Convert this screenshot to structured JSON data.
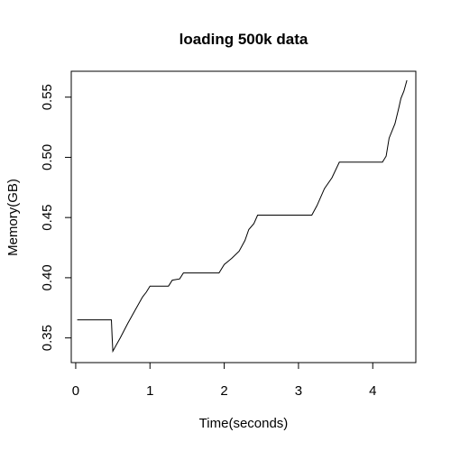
{
  "chart_data": {
    "type": "line",
    "title": "loading 500k data",
    "xlabel": "Time(seconds)",
    "ylabel": "Memory(GB)",
    "xlim": [
      -0.06,
      4.58
    ],
    "ylim": [
      0.3295,
      0.5715
    ],
    "xticks": [
      0,
      1,
      2,
      3,
      4
    ],
    "xtick_labels": [
      "0",
      "1",
      "2",
      "3",
      "4"
    ],
    "yticks": [
      0.35,
      0.4,
      0.45,
      0.5,
      0.55
    ],
    "ytick_labels": [
      "0.35",
      "0.40",
      "0.45",
      "0.50",
      "0.55"
    ],
    "grid": false,
    "line_color": "#000000",
    "series": [
      {
        "x": [
          0.02,
          0.48,
          0.49,
          0.5,
          0.6,
          0.7,
          0.8,
          0.9,
          0.95,
          1.0,
          1.1,
          1.25,
          1.3,
          1.4,
          1.45,
          1.6,
          1.8,
          1.93,
          2.0,
          2.1,
          2.2,
          2.28,
          2.33,
          2.4,
          2.45,
          2.6,
          2.8,
          3.0,
          3.18,
          3.25,
          3.35,
          3.45,
          3.55,
          3.58,
          3.8,
          4.0,
          4.13,
          4.18,
          4.22,
          4.3,
          4.35,
          4.38,
          4.42,
          4.46
        ],
        "y": [
          0.365,
          0.365,
          0.351,
          0.339,
          0.35,
          0.362,
          0.373,
          0.384,
          0.388,
          0.393,
          0.393,
          0.393,
          0.398,
          0.399,
          0.404,
          0.404,
          0.404,
          0.404,
          0.411,
          0.416,
          0.422,
          0.431,
          0.44,
          0.445,
          0.452,
          0.452,
          0.452,
          0.452,
          0.452,
          0.46,
          0.474,
          0.483,
          0.496,
          0.496,
          0.496,
          0.496,
          0.496,
          0.501,
          0.516,
          0.528,
          0.541,
          0.549,
          0.555,
          0.564
        ]
      }
    ]
  }
}
